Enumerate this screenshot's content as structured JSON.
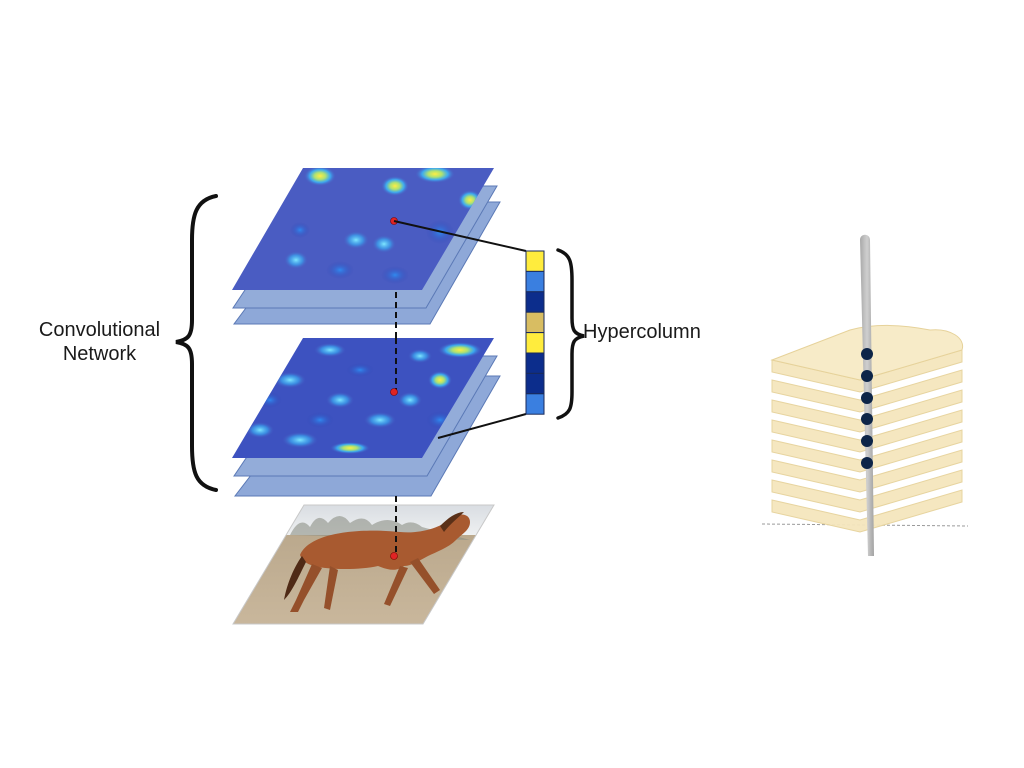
{
  "labels": {
    "network_line1": "Convolutional",
    "network_line2": "Network",
    "hypercolumn": "Hypercolumn"
  },
  "hypercolumn_cells": [
    "#ffec3d",
    "#3a7fe0",
    "#0c2d8c",
    "#d8bd62",
    "#ffec3d",
    "#0c2d8c",
    "#0c2d8c",
    "#3a7fe0"
  ],
  "colors": {
    "layer_fill": "#8ea8d8",
    "layer_stroke": "#5b79b6",
    "heatmap_base": "#4a5cc2",
    "heatmap_hot": "#ffe94a",
    "heatmap_warm": "#2fc7ff",
    "probe_dot": "#e02424",
    "bread": "#f5e6bd",
    "bread_crust": "#ead7a1",
    "skewer": "#bcbcbc",
    "skewer_dot": "#0d2548"
  },
  "icons": {
    "left_brace": "curly-brace",
    "right_brace": "curly-brace",
    "input_image": "horse-photo"
  }
}
